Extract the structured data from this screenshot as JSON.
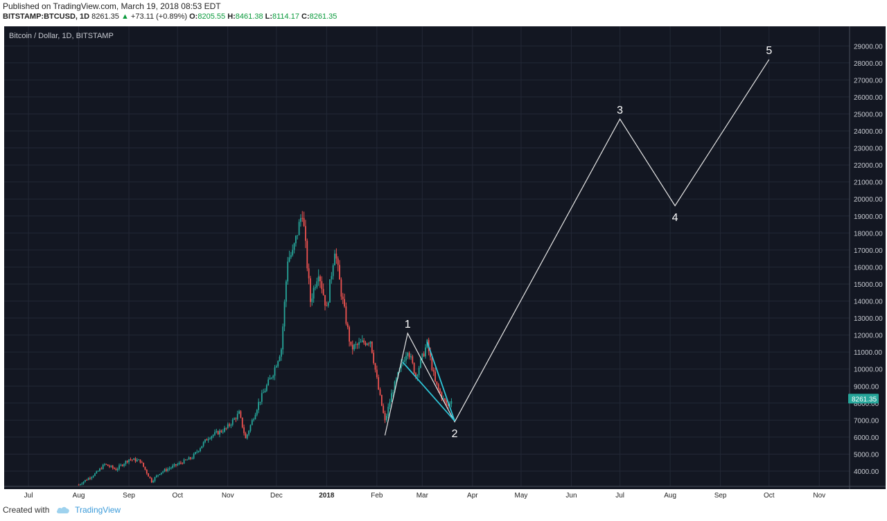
{
  "header": {
    "published": "Published on TradingView.com, March 19, 2018 08:53 EDT",
    "symbol": "BITSTAMP:BTCUSD, 1D",
    "last": "8261.35",
    "change": "+73.11 (+0.89%)",
    "o_label": "O:",
    "o_value": "8205.55",
    "h_label": "H:",
    "h_value": "8461.38",
    "l_label": "L:",
    "l_value": "8114.17",
    "c_label": "C:",
    "c_value": "8261.35",
    "up_arrow": "▲"
  },
  "footer": {
    "created_with": "Created with",
    "brand": "TradingView",
    "logo_icon": "tradingview-cloud-icon"
  },
  "colors": {
    "background": "#131722",
    "up": "#26a69a",
    "down": "#ef5350",
    "grid": "#232836",
    "wave": "#e8e8e8",
    "wedge": "#2ec4d6",
    "price_tag": "#26a69a",
    "axis_text": "#c8cbd2"
  },
  "chart_data": {
    "type": "candlestick",
    "title": "Bitcoin / Dollar, 1D, BITSTAMP",
    "x_ticks": [
      "Jul",
      "Aug",
      "Sep",
      "Oct",
      "Nov",
      "Dec",
      "2018",
      "Feb",
      "Mar",
      "Apr",
      "May",
      "Jun",
      "Jul",
      "Aug",
      "Sep",
      "Oct",
      "Nov"
    ],
    "y_ticks": [
      "4000.00",
      "5000.00",
      "6000.00",
      "7000.00",
      "8000.00",
      "9000.00",
      "10000.00",
      "11000.00",
      "12000.00",
      "13000.00",
      "14000.00",
      "15000.00",
      "16000.00",
      "17000.00",
      "18000.00",
      "19000.00",
      "20000.00",
      "21000.00",
      "22000.00",
      "23000.00",
      "24000.00",
      "25000.00",
      "26000.00",
      "27000.00",
      "28000.00",
      "29000.00"
    ],
    "ylim": [
      3000,
      30000
    ],
    "current_price": "8261.35",
    "price_path": [
      [
        "2017-08-01",
        3200
      ],
      [
        "2017-08-12",
        3900
      ],
      [
        "2017-08-17",
        4400
      ],
      [
        "2017-08-24",
        4100
      ],
      [
        "2017-09-01",
        4700
      ],
      [
        "2017-09-08",
        4600
      ],
      [
        "2017-09-15",
        3400
      ],
      [
        "2017-09-20",
        3900
      ],
      [
        "2017-10-01",
        4400
      ],
      [
        "2017-10-10",
        4800
      ],
      [
        "2017-10-20",
        6000
      ],
      [
        "2017-10-31",
        6500
      ],
      [
        "2017-11-08",
        7400
      ],
      [
        "2017-11-12",
        5900
      ],
      [
        "2017-11-20",
        8000
      ],
      [
        "2017-11-29",
        9800
      ],
      [
        "2017-12-04",
        11200
      ],
      [
        "2017-12-08",
        16500
      ],
      [
        "2017-12-11",
        16800
      ],
      [
        "2017-12-17",
        19300
      ],
      [
        "2017-12-22",
        14000
      ],
      [
        "2017-12-27",
        15800
      ],
      [
        "2018-01-01",
        13500
      ],
      [
        "2018-01-06",
        17100
      ],
      [
        "2018-01-10",
        14500
      ],
      [
        "2018-01-16",
        11200
      ],
      [
        "2018-01-22",
        11500
      ],
      [
        "2018-01-28",
        11700
      ],
      [
        "2018-02-02",
        8800
      ],
      [
        "2018-02-06",
        6900
      ],
      [
        "2018-02-10",
        8500
      ],
      [
        "2018-02-16",
        10200
      ],
      [
        "2018-02-20",
        11200
      ],
      [
        "2018-02-25",
        9600
      ],
      [
        "2018-03-04",
        11500
      ],
      [
        "2018-03-09",
        9200
      ],
      [
        "2018-03-14",
        8200
      ],
      [
        "2018-03-17",
        7800
      ],
      [
        "2018-03-19",
        8261
      ]
    ],
    "wave_labels": [
      {
        "label": "1",
        "date": "2018-02-20",
        "price": 12100
      },
      {
        "label": "2",
        "date": "2018-03-21",
        "price": 6900
      },
      {
        "label": "3",
        "date": "2018-07-01",
        "price": 24700
      },
      {
        "label": "4",
        "date": "2018-08-04",
        "price": 19600
      },
      {
        "label": "5",
        "date": "2018-10-01",
        "price": 28200
      }
    ],
    "wave_path": [
      [
        "2018-02-06",
        6100
      ],
      [
        "2018-02-20",
        12100
      ],
      [
        "2018-03-21",
        6900
      ],
      [
        "2018-07-01",
        24700
      ],
      [
        "2018-08-04",
        19600
      ],
      [
        "2018-10-01",
        28200
      ]
    ],
    "wedge_lines": [
      [
        [
          "2018-02-17",
          10400
        ],
        [
          "2018-03-21",
          6950
        ]
      ],
      [
        [
          "2018-03-04",
          11600
        ],
        [
          "2018-03-21",
          6950
        ]
      ]
    ]
  }
}
